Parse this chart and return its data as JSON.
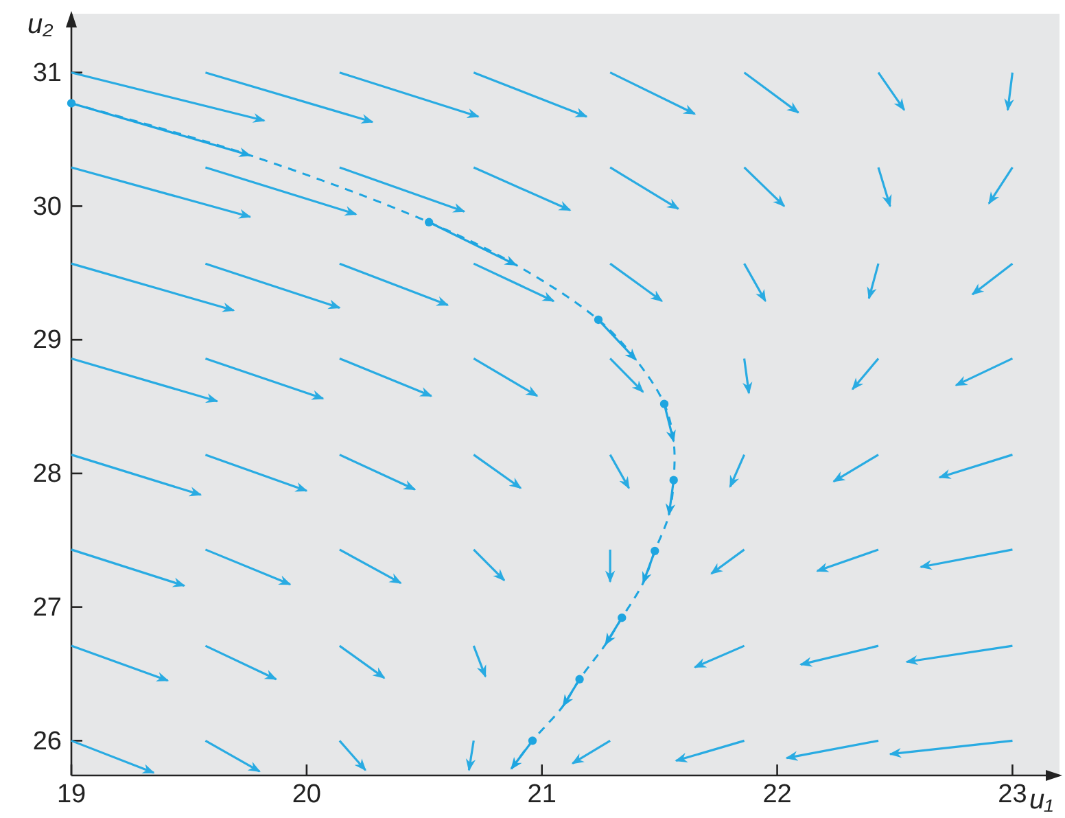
{
  "chart_data": {
    "type": "line",
    "xlabel": "u₁",
    "ylabel": "u₂",
    "xlim": [
      19,
      23.2
    ],
    "ylim": [
      25.74,
      31.44
    ],
    "xticks": [
      19,
      20,
      21,
      22,
      23
    ],
    "yticks": [
      26,
      27,
      28,
      29,
      30,
      31
    ],
    "grid": false,
    "series": [
      {
        "color": "#29abe2",
        "x": [
          19,
          19.82
        ],
        "values": [
          31,
          30.64
        ]
      },
      {
        "color": "#29abe2",
        "x": [
          19.57,
          20.28
        ],
        "values": [
          31,
          30.63
        ]
      },
      {
        "color": "#29abe2",
        "x": [
          20.14,
          20.73
        ],
        "values": [
          31,
          30.67
        ]
      },
      {
        "color": "#29abe2",
        "x": [
          20.71,
          21.19
        ],
        "values": [
          31,
          30.67
        ]
      },
      {
        "color": "#29abe2",
        "x": [
          21.29,
          21.65
        ],
        "values": [
          31,
          30.69
        ]
      },
      {
        "color": "#29abe2",
        "x": [
          21.86,
          22.09
        ],
        "values": [
          31,
          30.7
        ]
      },
      {
        "color": "#29abe2",
        "x": [
          22.43,
          22.54
        ],
        "values": [
          31,
          30.72
        ]
      },
      {
        "color": "#29abe2",
        "x": [
          23,
          22.98
        ],
        "values": [
          31,
          30.72
        ]
      },
      {
        "color": "#29abe2",
        "x": [
          19,
          19.76
        ],
        "values": [
          30.29,
          29.92
        ]
      },
      {
        "color": "#29abe2",
        "x": [
          19.57,
          20.21
        ],
        "values": [
          30.29,
          29.94
        ]
      },
      {
        "color": "#29abe2",
        "x": [
          20.14,
          20.67
        ],
        "values": [
          30.29,
          29.96
        ]
      },
      {
        "color": "#29abe2",
        "x": [
          20.71,
          21.12
        ],
        "values": [
          30.29,
          29.97
        ]
      },
      {
        "color": "#29abe2",
        "x": [
          21.29,
          21.58
        ],
        "values": [
          30.29,
          29.98
        ]
      },
      {
        "color": "#29abe2",
        "x": [
          21.86,
          22.03
        ],
        "values": [
          30.29,
          30
        ]
      },
      {
        "color": "#29abe2",
        "x": [
          22.43,
          22.48
        ],
        "values": [
          30.29,
          30
        ]
      },
      {
        "color": "#29abe2",
        "x": [
          23,
          22.9
        ],
        "values": [
          30.29,
          30.02
        ]
      },
      {
        "color": "#29abe2",
        "x": [
          19,
          19.69
        ],
        "values": [
          29.57,
          29.22
        ]
      },
      {
        "color": "#29abe2",
        "x": [
          19.57,
          20.14
        ],
        "values": [
          29.57,
          29.24
        ]
      },
      {
        "color": "#29abe2",
        "x": [
          20.14,
          20.6
        ],
        "values": [
          29.57,
          29.26
        ]
      },
      {
        "color": "#29abe2",
        "x": [
          20.71,
          21.05
        ],
        "values": [
          29.57,
          29.29
        ]
      },
      {
        "color": "#29abe2",
        "x": [
          21.29,
          21.51
        ],
        "values": [
          29.57,
          29.29
        ]
      },
      {
        "color": "#29abe2",
        "x": [
          21.86,
          21.95
        ],
        "values": [
          29.57,
          29.29
        ]
      },
      {
        "color": "#29abe2",
        "x": [
          22.43,
          22.39
        ],
        "values": [
          29.57,
          29.31
        ]
      },
      {
        "color": "#29abe2",
        "x": [
          23,
          22.83
        ],
        "values": [
          29.57,
          29.34
        ]
      },
      {
        "color": "#29abe2",
        "x": [
          19,
          19.62
        ],
        "values": [
          28.86,
          28.54
        ]
      },
      {
        "color": "#29abe2",
        "x": [
          19.57,
          20.07
        ],
        "values": [
          28.86,
          28.56
        ]
      },
      {
        "color": "#29abe2",
        "x": [
          20.14,
          20.53
        ],
        "values": [
          28.86,
          28.58
        ]
      },
      {
        "color": "#29abe2",
        "x": [
          20.71,
          20.98
        ],
        "values": [
          28.86,
          28.58
        ]
      },
      {
        "color": "#29abe2",
        "x": [
          21.29,
          21.43
        ],
        "values": [
          28.86,
          28.61
        ]
      },
      {
        "color": "#29abe2",
        "x": [
          21.86,
          21.88
        ],
        "values": [
          28.86,
          28.6
        ]
      },
      {
        "color": "#29abe2",
        "x": [
          22.43,
          22.32
        ],
        "values": [
          28.86,
          28.63
        ]
      },
      {
        "color": "#29abe2",
        "x": [
          23,
          22.76
        ],
        "values": [
          28.86,
          28.66
        ]
      },
      {
        "color": "#29abe2",
        "x": [
          19,
          19.55
        ],
        "values": [
          28.14,
          27.84
        ]
      },
      {
        "color": "#29abe2",
        "x": [
          19.57,
          20
        ],
        "values": [
          28.14,
          27.87
        ]
      },
      {
        "color": "#29abe2",
        "x": [
          20.14,
          20.46
        ],
        "values": [
          28.14,
          27.88
        ]
      },
      {
        "color": "#29abe2",
        "x": [
          20.71,
          20.91
        ],
        "values": [
          28.14,
          27.89
        ]
      },
      {
        "color": "#29abe2",
        "x": [
          21.29,
          21.37
        ],
        "values": [
          28.14,
          27.89
        ]
      },
      {
        "color": "#29abe2",
        "x": [
          21.86,
          21.8
        ],
        "values": [
          28.14,
          27.9
        ]
      },
      {
        "color": "#29abe2",
        "x": [
          22.43,
          22.24
        ],
        "values": [
          28.14,
          27.94
        ]
      },
      {
        "color": "#29abe2",
        "x": [
          23,
          22.69
        ],
        "values": [
          28.14,
          27.97
        ]
      },
      {
        "color": "#29abe2",
        "x": [
          19,
          19.48
        ],
        "values": [
          27.43,
          27.16
        ]
      },
      {
        "color": "#29abe2",
        "x": [
          19.57,
          19.93
        ],
        "values": [
          27.43,
          27.17
        ]
      },
      {
        "color": "#29abe2",
        "x": [
          20.14,
          20.4
        ],
        "values": [
          27.43,
          27.18
        ]
      },
      {
        "color": "#29abe2",
        "x": [
          20.71,
          20.84
        ],
        "values": [
          27.43,
          27.2
        ]
      },
      {
        "color": "#29abe2",
        "x": [
          21.29,
          21.29
        ],
        "values": [
          27.43,
          27.19
        ]
      },
      {
        "color": "#29abe2",
        "x": [
          21.86,
          21.72
        ],
        "values": [
          27.43,
          27.25
        ]
      },
      {
        "color": "#29abe2",
        "x": [
          22.43,
          22.17
        ],
        "values": [
          27.43,
          27.27
        ]
      },
      {
        "color": "#29abe2",
        "x": [
          23,
          22.61
        ],
        "values": [
          27.43,
          27.3
        ]
      },
      {
        "color": "#29abe2",
        "x": [
          19,
          19.41
        ],
        "values": [
          26.71,
          26.45
        ]
      },
      {
        "color": "#29abe2",
        "x": [
          19.57,
          19.87
        ],
        "values": [
          26.71,
          26.46
        ]
      },
      {
        "color": "#29abe2",
        "x": [
          20.14,
          20.33
        ],
        "values": [
          26.71,
          26.47
        ]
      },
      {
        "color": "#29abe2",
        "x": [
          20.71,
          20.76
        ],
        "values": [
          26.71,
          26.48
        ]
      },
      {
        "color": "#29abe2",
        "x": [
          21.86,
          21.65
        ],
        "values": [
          26.71,
          26.55
        ]
      },
      {
        "color": "#29abe2",
        "x": [
          22.43,
          22.1
        ],
        "values": [
          26.71,
          26.57
        ]
      },
      {
        "color": "#29abe2",
        "x": [
          23,
          22.55
        ],
        "values": [
          26.71,
          26.59
        ]
      },
      {
        "color": "#29abe2",
        "x": [
          19,
          19.35
        ],
        "values": [
          26,
          25.76
        ]
      },
      {
        "color": "#29abe2",
        "x": [
          19.57,
          19.8
        ],
        "values": [
          26,
          25.77
        ]
      },
      {
        "color": "#29abe2",
        "x": [
          20.14,
          20.25
        ],
        "values": [
          26,
          25.78
        ]
      },
      {
        "color": "#29abe2",
        "x": [
          20.71,
          20.69
        ],
        "values": [
          26,
          25.78
        ]
      },
      {
        "color": "#29abe2",
        "x": [
          21.29,
          21.13
        ],
        "values": [
          26,
          25.83
        ]
      },
      {
        "color": "#29abe2",
        "x": [
          21.86,
          21.57
        ],
        "values": [
          26,
          25.85
        ]
      },
      {
        "color": "#29abe2",
        "x": [
          22.43,
          22.04
        ],
        "values": [
          26,
          25.87
        ]
      },
      {
        "color": "#29abe2",
        "x": [
          23,
          22.48
        ],
        "values": [
          26,
          25.9
        ]
      },
      {
        "color": "#1ea5e0",
        "line_style": "dashed",
        "marker": "none",
        "x": [
          19,
          19.76,
          20.52,
          20.89,
          21.24,
          21.4,
          21.52,
          21.56,
          21.56,
          21.54,
          21.48,
          21.43,
          21.34,
          21.27,
          21.16,
          21.09,
          20.96,
          20.87
        ],
        "values": [
          30.77,
          30.38,
          29.88,
          29.56,
          29.15,
          28.85,
          28.52,
          28.24,
          27.95,
          27.69,
          27.42,
          27.18,
          26.92,
          26.72,
          26.46,
          26.26,
          26,
          25.79
        ]
      },
      {
        "color": "#1ea5e0",
        "x": [
          19,
          19.76
        ],
        "values": [
          30.77,
          30.38
        ]
      },
      {
        "color": "#1ea5e0",
        "x": [
          20.52,
          20.89
        ],
        "values": [
          29.88,
          29.56
        ]
      },
      {
        "color": "#1ea5e0",
        "x": [
          21.24,
          21.4
        ],
        "values": [
          29.15,
          28.85
        ]
      },
      {
        "color": "#1ea5e0",
        "x": [
          21.52,
          21.56
        ],
        "values": [
          28.52,
          28.24
        ]
      },
      {
        "color": "#1ea5e0",
        "x": [
          21.56,
          21.54
        ],
        "values": [
          27.95,
          27.69
        ]
      },
      {
        "color": "#1ea5e0",
        "x": [
          21.48,
          21.43
        ],
        "values": [
          27.42,
          27.18
        ]
      },
      {
        "color": "#1ea5e0",
        "x": [
          21.34,
          21.27
        ],
        "values": [
          26.92,
          26.72
        ]
      },
      {
        "color": "#1ea5e0",
        "x": [
          21.16,
          21.09
        ],
        "values": [
          26.46,
          26.26
        ]
      },
      {
        "color": "#1ea5e0",
        "x": [
          20.96,
          20.87
        ],
        "values": [
          26,
          25.79
        ]
      },
      {
        "type": "scatter",
        "color": "#1ea5e0",
        "marker": "circle",
        "x": [
          19,
          20.52,
          21.24,
          21.52,
          21.56,
          21.48,
          21.34,
          21.16,
          20.96
        ],
        "values": [
          30.77,
          29.88,
          29.15,
          28.52,
          27.95,
          27.42,
          26.92,
          26.46,
          26
        ]
      }
    ]
  }
}
